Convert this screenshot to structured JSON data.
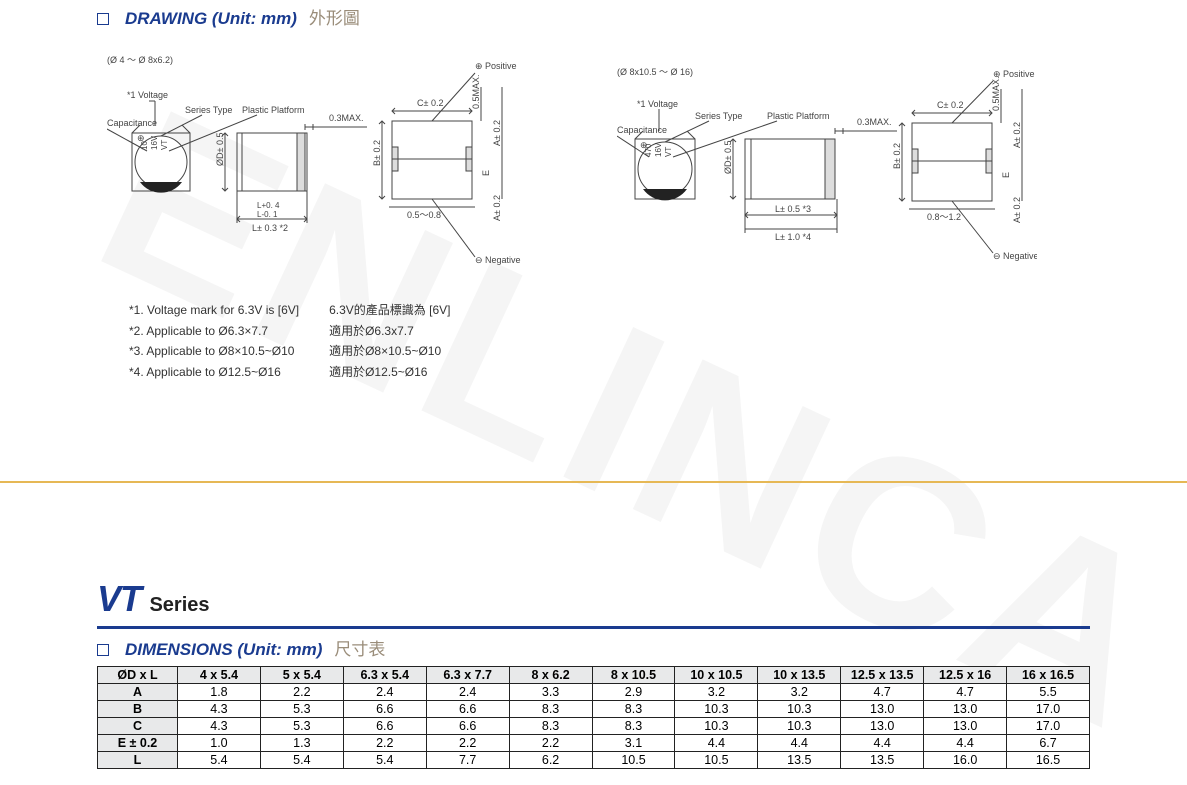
{
  "watermark": "ENLINCA",
  "drawing_section": {
    "title_en": "DRAWING (Unit: mm)",
    "title_zh": "外形圖"
  },
  "drawing_left": {
    "range_label": "(Ø 4 ～ Ø 8x6.2)",
    "voltage_note": "*1  Voltage",
    "capacitance_label": "Capacitance",
    "series_type_label": "Series Type",
    "plastic_platform_label": "Plastic Platform",
    "cap_text_1": "10",
    "cap_text_2": "16V",
    "cap_text_3": "VT",
    "dim_D": "ØD± 0.5",
    "dim_Ltol": "L+0. 4\nL-0. 1",
    "dim_Lnote": "L± 0.3 *2",
    "dim_03max": "0.3MAX.",
    "dim_C": "C± 0.2",
    "dim_05max": "0.5MAX.",
    "dim_A_upper": "A± 0.2",
    "dim_B": "B± 0.2",
    "dim_range": "0.5～0.8",
    "dim_A_lower": "A± 0.2",
    "dim_E": "E",
    "positive": "Positive",
    "negative": "Negative",
    "polarity_plus": "⊕",
    "polarity_minus": "⊖"
  },
  "drawing_right": {
    "range_label": "(Ø 8x10.5 ～ Ø 16)",
    "voltage_note": "*1  Voltage",
    "capacitance_label": "Capacitance",
    "series_type_label": "Series Type",
    "plastic_platform_label": "Plastic Platform",
    "cap_text_1": "470",
    "cap_text_2": "16V",
    "cap_text_3": "VT",
    "dim_D": "ØD± 0.5",
    "dim_L05": "L± 0.5 *3",
    "dim_L10": "L± 1.0 *4",
    "dim_03max": "0.3MAX.",
    "dim_C": "C± 0.2",
    "dim_05max": "0.5MAX.",
    "dim_A_upper": "A± 0.2",
    "dim_B": "B± 0.2",
    "dim_range": "0.8～1.2",
    "dim_A_lower": "A± 0.2",
    "dim_E": "E",
    "positive": "Positive",
    "negative": "Negative",
    "polarity_plus": "⊕",
    "polarity_minus": "⊖"
  },
  "notes": [
    {
      "en": "*1. Voltage mark for 6.3V is [6V]",
      "zh": "6.3V的產品標識為  [6V]"
    },
    {
      "en": "*2. Applicable to Ø6.3×7.7",
      "zh": "適用於Ø6.3x7.7"
    },
    {
      "en": "*3. Applicable to Ø8×10.5~Ø10",
      "zh": "適用於Ø8×10.5~Ø10"
    },
    {
      "en": "*4. Applicable to Ø12.5~Ø16",
      "zh": "適用於Ø12.5~Ø16"
    }
  ],
  "series": {
    "vt": "VT",
    "label": "Series"
  },
  "dimensions_section": {
    "title_en": "DIMENSIONS (Unit: mm)",
    "title_zh": "尺寸表"
  },
  "dimensions_table": {
    "corner": "ØD x L",
    "columns": [
      "4 x 5.4",
      "5 x 5.4",
      "6.3 x 5.4",
      "6.3 x 7.7",
      "8 x 6.2",
      "8 x 10.5",
      "10 x 10.5",
      "10 x 13.5",
      "12.5 x 13.5",
      "12.5 x 16",
      "16 x 16.5"
    ],
    "rows": [
      {
        "label": "A",
        "cells": [
          "1.8",
          "2.2",
          "2.4",
          "2.4",
          "3.3",
          "2.9",
          "3.2",
          "3.2",
          "4.7",
          "4.7",
          "5.5"
        ]
      },
      {
        "label": "B",
        "cells": [
          "4.3",
          "5.3",
          "6.6",
          "6.6",
          "8.3",
          "8.3",
          "10.3",
          "10.3",
          "13.0",
          "13.0",
          "17.0"
        ]
      },
      {
        "label": "C",
        "cells": [
          "4.3",
          "5.3",
          "6.6",
          "6.6",
          "8.3",
          "8.3",
          "10.3",
          "10.3",
          "13.0",
          "13.0",
          "17.0"
        ]
      },
      {
        "label": "E ± 0.2",
        "cells": [
          "1.0",
          "1.3",
          "2.2",
          "2.2",
          "2.2",
          "3.1",
          "4.4",
          "4.4",
          "4.4",
          "4.4",
          "6.7"
        ]
      },
      {
        "label": "L",
        "cells": [
          "5.4",
          "5.4",
          "5.4",
          "7.7",
          "6.2",
          "10.5",
          "10.5",
          "13.5",
          "13.5",
          "16.0",
          "16.5"
        ]
      }
    ]
  },
  "styling": {
    "brand_color": "#1a3b8f",
    "accent_color": "#e6b855",
    "header_bg": "#e8e9ea",
    "border_color": "#222222",
    "text_color": "#333333",
    "zh_color": "#9a8d7a",
    "table_font_size_pt": 12.5,
    "note_font_size_pt": 12,
    "section_title_font_size_pt": 17,
    "series_vt_font_size_pt": 36
  }
}
